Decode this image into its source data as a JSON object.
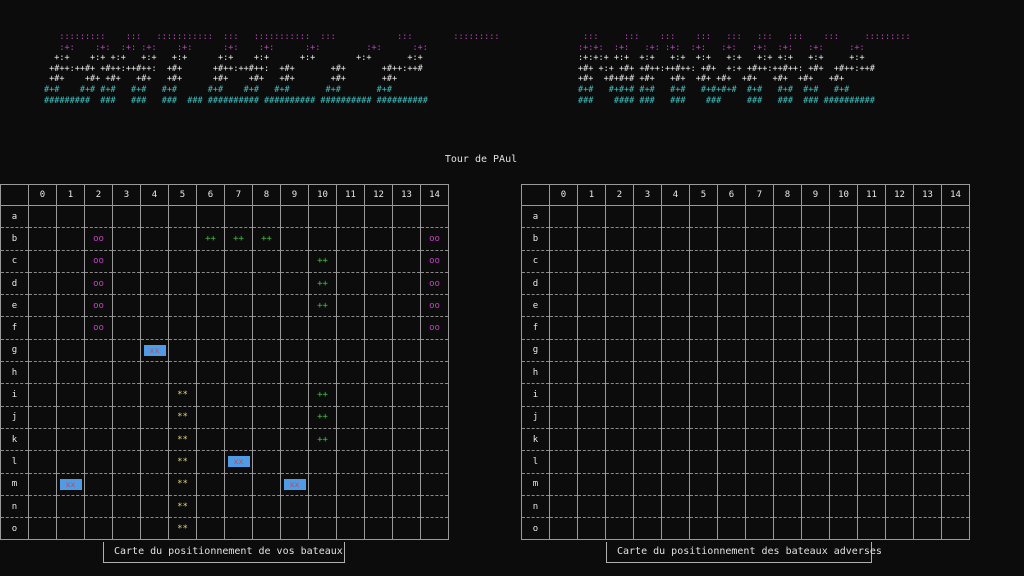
{
  "banner": {
    "left_lines": [
      {
        "color": "#c040c0",
        "text": "   :::::::::    :::   :::::::::::  :::   :::::::::::  :::            :::        :::::::::"
      },
      {
        "color": "#c040c0",
        "text": "   :+:    :+:  :+: :+:    :+:      :+:    :+:      :+:         :+:      :+:"
      },
      {
        "color": "#e6e6e6",
        "text": "  +:+    +:+ +:+   +:+   +:+      +:+    +:+      +:+        +:+       +:+"
      },
      {
        "color": "#e6e6e6",
        "text": " +#++:++#+ +#++:++#++:  +#+      +#++:++#++:  +#+       +#+       +#++:++#"
      },
      {
        "color": "#e6e6e6",
        "text": " +#+    +#+ +#+   +#+   +#+      +#+    +#+   +#+       +#+       +#+"
      },
      {
        "color": "#40c0c0",
        "text": "#+#    #+# #+#   #+#   #+#      #+#    #+#   #+#       #+#       #+#"
      },
      {
        "color": "#40c0c0",
        "text": "#########  ###   ###   ###  ### ########## ########## ########## ##########"
      }
    ],
    "right_lines": [
      {
        "color": "#c040c0",
        "text": " :::     :::    :::    :::   :::   :::   :::    :::     :::::::::"
      },
      {
        "color": "#c040c0",
        "text": ":+:+:  :+:   :+: :+:  :+:   :+:   :+:  :+:   :+:     :+:"
      },
      {
        "color": "#e6e6e6",
        "text": ":+:+:+ +:+  +:+   +:+  +:+   +:+   +:+ +:+   +:+     +:+"
      },
      {
        "color": "#e6e6e6",
        "text": "+#+ +:+ +#+ +#++:++#++: +#+  +:+ +#++:++#++: +#+  +#++:++#"
      },
      {
        "color": "#e6e6e6",
        "text": "+#+  +#+#+# +#+   +#+  +#+ +#+  +#+   +#+  +#+   +#+"
      },
      {
        "color": "#40c0c0",
        "text": "#+#   #+#+# #+#   #+#   #+#+#+#  #+#   #+#  #+#   #+#"
      },
      {
        "color": "#40c0c0",
        "text": "###    #### ###   ###    ###     ###   ###  ### ##########"
      }
    ]
  },
  "turn_label": "Tour de PAul",
  "columns": [
    "0",
    "1",
    "2",
    "3",
    "4",
    "5",
    "6",
    "7",
    "8",
    "9",
    "10",
    "11",
    "12",
    "13",
    "14"
  ],
  "rows": [
    "a",
    "b",
    "c",
    "d",
    "e",
    "f",
    "g",
    "h",
    "i",
    "j",
    "k",
    "l",
    "m",
    "n",
    "o"
  ],
  "colors": {
    "magenta": "#c040c0",
    "green": "#3cc03c",
    "yellow": "#e6d070",
    "blue": "#4f9be6",
    "hit_red": "#c84b4b"
  },
  "my_board": {
    "caption": "Carte du positionnement de vos bateaux",
    "marks": [
      {
        "row": "b",
        "col": 2,
        "text": "oo",
        "color": "magenta"
      },
      {
        "row": "c",
        "col": 2,
        "text": "oo",
        "color": "magenta"
      },
      {
        "row": "d",
        "col": 2,
        "text": "oo",
        "color": "magenta"
      },
      {
        "row": "e",
        "col": 2,
        "text": "oo",
        "color": "magenta"
      },
      {
        "row": "f",
        "col": 2,
        "text": "oo",
        "color": "magenta"
      },
      {
        "row": "b",
        "col": 14,
        "text": "oo",
        "color": "magenta"
      },
      {
        "row": "c",
        "col": 14,
        "text": "oo",
        "color": "magenta"
      },
      {
        "row": "d",
        "col": 14,
        "text": "oo",
        "color": "magenta"
      },
      {
        "row": "e",
        "col": 14,
        "text": "oo",
        "color": "magenta"
      },
      {
        "row": "f",
        "col": 14,
        "text": "oo",
        "color": "magenta"
      },
      {
        "row": "b",
        "col": 6,
        "text": "++",
        "color": "green"
      },
      {
        "row": "b",
        "col": 7,
        "text": "++",
        "color": "green"
      },
      {
        "row": "b",
        "col": 8,
        "text": "++",
        "color": "green"
      },
      {
        "row": "c",
        "col": 10,
        "text": "++",
        "color": "green"
      },
      {
        "row": "d",
        "col": 10,
        "text": "++",
        "color": "green"
      },
      {
        "row": "e",
        "col": 10,
        "text": "++",
        "color": "green"
      },
      {
        "row": "i",
        "col": 10,
        "text": "++",
        "color": "green"
      },
      {
        "row": "j",
        "col": 10,
        "text": "++",
        "color": "green"
      },
      {
        "row": "k",
        "col": 10,
        "text": "++",
        "color": "green"
      },
      {
        "row": "i",
        "col": 5,
        "text": "**",
        "color": "yellow"
      },
      {
        "row": "j",
        "col": 5,
        "text": "**",
        "color": "yellow"
      },
      {
        "row": "k",
        "col": 5,
        "text": "**",
        "color": "yellow"
      },
      {
        "row": "l",
        "col": 5,
        "text": "**",
        "color": "yellow"
      },
      {
        "row": "m",
        "col": 5,
        "text": "**",
        "color": "yellow"
      },
      {
        "row": "n",
        "col": 5,
        "text": "**",
        "color": "yellow"
      },
      {
        "row": "o",
        "col": 5,
        "text": "**",
        "color": "yellow"
      },
      {
        "row": "g",
        "col": 4,
        "text": "xx",
        "color": "blue"
      },
      {
        "row": "l",
        "col": 7,
        "text": "xx",
        "color": "blue"
      },
      {
        "row": "m",
        "col": 1,
        "text": "xx",
        "color": "blue"
      },
      {
        "row": "m",
        "col": 9,
        "text": "xx",
        "color": "blue"
      }
    ]
  },
  "enemy_board": {
    "caption": "Carte du positionnement des bateaux adverses",
    "marks": []
  }
}
